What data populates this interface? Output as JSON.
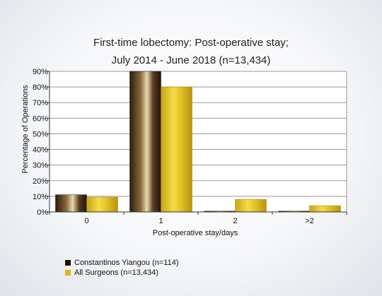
{
  "chart_data": {
    "type": "bar",
    "title_lines": [
      "First-time lobectomy: Post-operative stay;",
      "July 2014 - June 2018 (n=13,434)"
    ],
    "xlabel": "Post-operative stay/days",
    "ylabel": "Percentage of Operations",
    "categories": [
      "0",
      "1",
      "2",
      ">2"
    ],
    "ylim": [
      0,
      90
    ],
    "yticks": [
      0,
      10,
      20,
      30,
      40,
      50,
      60,
      70,
      80,
      90
    ],
    "ytick_suffix": "%",
    "grid": true,
    "legend_position": "bottom-left",
    "series": [
      {
        "name": "Constantinos Yiangou (n=114)",
        "values": [
          11,
          90,
          0.5,
          0.5
        ],
        "color": "#3a2a12"
      },
      {
        "name": "All Surgeons (n=13,434)",
        "values": [
          9.5,
          80,
          8,
          4
        ],
        "color": "#d9b91c"
      }
    ]
  }
}
